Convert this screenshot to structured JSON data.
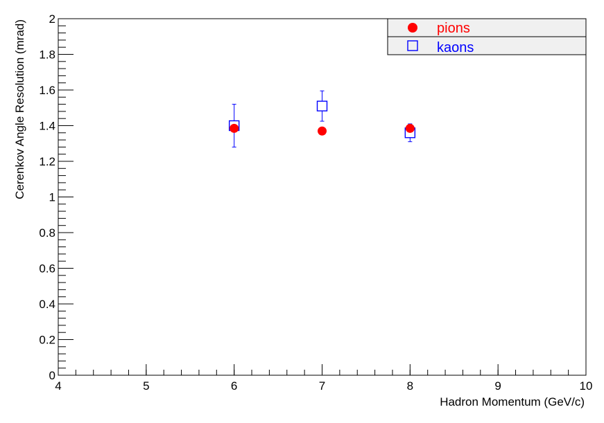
{
  "chart_data": {
    "type": "scatter",
    "xlabel": "Hadron Momentum (GeV/c)",
    "ylabel": "Cerenkov Angle Resolution (mrad)",
    "xlim": [
      4,
      10
    ],
    "ylim": [
      0,
      2
    ],
    "x_ticks": [
      "4",
      "5",
      "6",
      "7",
      "8",
      "9",
      "10"
    ],
    "y_ticks": [
      "0",
      "0.2",
      "0.4",
      "0.6",
      "0.8",
      "1",
      "1.2",
      "1.4",
      "1.6",
      "1.8",
      "2"
    ],
    "grid": false,
    "legend_position": "top-right",
    "series": [
      {
        "name": "pions",
        "marker": "filled-circle",
        "color": "#ff0000",
        "points": [
          {
            "x": 6,
            "y": 1.385
          },
          {
            "x": 7,
            "y": 1.37
          },
          {
            "x": 8,
            "y": 1.385
          }
        ]
      },
      {
        "name": "kaons",
        "marker": "open-square",
        "color": "#0000ff",
        "points": [
          {
            "x": 6,
            "y": 1.4,
            "err": 0.12
          },
          {
            "x": 7,
            "y": 1.51,
            "err": 0.085
          },
          {
            "x": 8,
            "y": 1.36,
            "err": 0.05
          }
        ]
      }
    ]
  }
}
